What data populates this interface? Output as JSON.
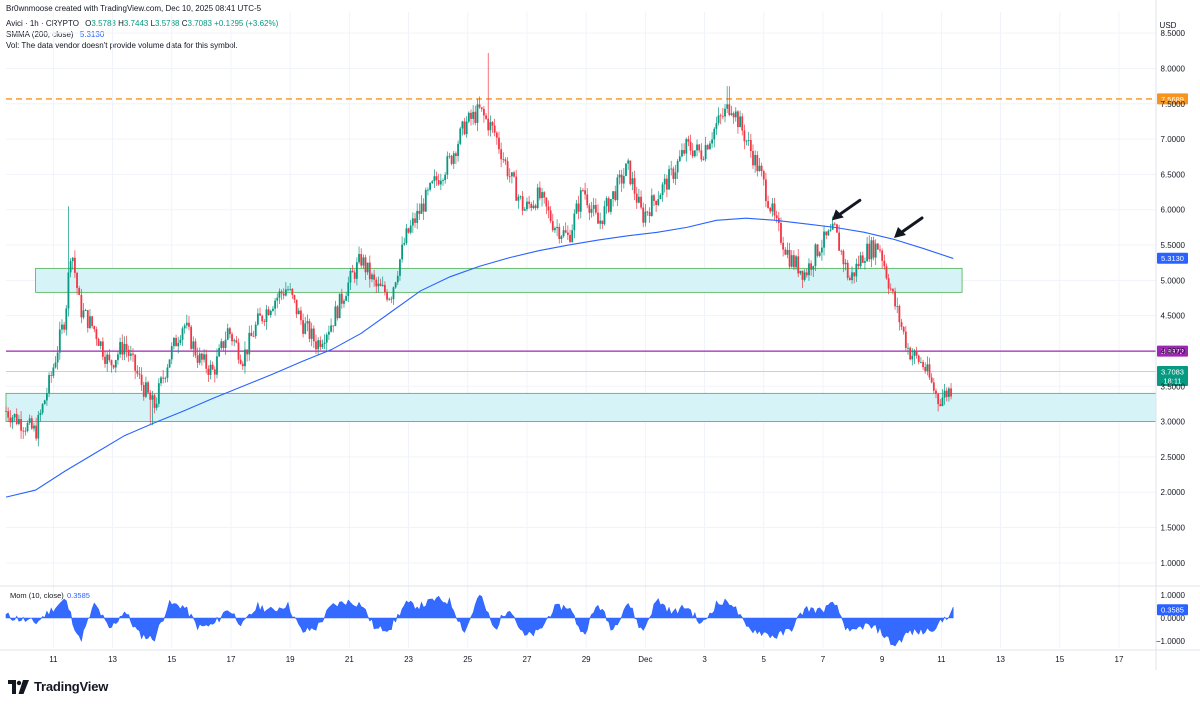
{
  "header": {
    "created_by": "Br0wnmoose created with TradingView.com, Dec 10, 2025 08:41 UTC-5",
    "symbol_line": "Avici · 1h · CRYPTO",
    "ohlc": {
      "o_label": "O",
      "o": "3.5788",
      "h_label": "H",
      "h": "3.7443",
      "l_label": "L",
      "l": "3.5788",
      "c_label": "C",
      "c": "3.7083",
      "change": "+0.1295 (+3.62%)"
    },
    "smma_label": "SMMA (200, close)",
    "smma_value": "5.3130",
    "vol_note": "Vol: The data vendor doesn't provide volume data for this symbol."
  },
  "currency": "USD",
  "brand": "TradingView",
  "colors": {
    "up": "#089981",
    "down": "#f23645",
    "smma": "#2962ff",
    "orange_line": "#f7941d",
    "purple_line": "#9c27b0",
    "zone_fill": "#d6f3f7",
    "zone_border": "#4caf50",
    "momentum": "#2962ff"
  },
  "chart_data": {
    "type": "candlestick",
    "price_axis": {
      "ticks": [
        "8.5000",
        "8.0000",
        "7.5000",
        "7.0000",
        "6.5000",
        "6.0000",
        "5.5000",
        "5.0000",
        "4.5000",
        "4.0000",
        "3.5000",
        "3.0000",
        "2.5000",
        "2.0000",
        "1.5000",
        "1.0000"
      ],
      "range": [
        0.7,
        8.8
      ]
    },
    "time_axis": {
      "ticks": [
        "11",
        "13",
        "15",
        "17",
        "19",
        "21",
        "23",
        "25",
        "27",
        "29",
        "Dec",
        "3",
        "5",
        "7",
        "9",
        "11",
        "13",
        "15",
        "17"
      ]
    },
    "price_path": [
      [
        0,
        3.15
      ],
      [
        1,
        2.85
      ],
      [
        1.5,
        3.6
      ],
      [
        2,
        4.5
      ],
      [
        2.2,
        5.5
      ],
      [
        2.5,
        4.6
      ],
      [
        3,
        4.3
      ],
      [
        3.5,
        3.8
      ],
      [
        4,
        4.1
      ],
      [
        4.5,
        3.6
      ],
      [
        5,
        3.2
      ],
      [
        5.5,
        3.9
      ],
      [
        6,
        4.4
      ],
      [
        6.5,
        3.9
      ],
      [
        7,
        3.7
      ],
      [
        7.5,
        4.3
      ],
      [
        8,
        3.9
      ],
      [
        8.5,
        4.4
      ],
      [
        9,
        4.7
      ],
      [
        9.5,
        4.9
      ],
      [
        10,
        4.4
      ],
      [
        10.5,
        4.1
      ],
      [
        11,
        4.4
      ],
      [
        11.5,
        4.9
      ],
      [
        12,
        5.3
      ],
      [
        12.5,
        4.9
      ],
      [
        13,
        4.8
      ],
      [
        13.5,
        5.6
      ],
      [
        14,
        6.0
      ],
      [
        14.5,
        6.4
      ],
      [
        15,
        6.7
      ],
      [
        15.5,
        7.2
      ],
      [
        16,
        7.4
      ],
      [
        16.5,
        7.1
      ],
      [
        17,
        6.5
      ],
      [
        17.5,
        6.0
      ],
      [
        18,
        6.2
      ],
      [
        18.5,
        5.8
      ],
      [
        19,
        5.6
      ],
      [
        19.5,
        6.3
      ],
      [
        20,
        5.8
      ],
      [
        20.5,
        6.2
      ],
      [
        21,
        6.6
      ],
      [
        21.5,
        5.9
      ],
      [
        22,
        6.2
      ],
      [
        22.5,
        6.5
      ],
      [
        23,
        6.9
      ],
      [
        23.5,
        6.8
      ],
      [
        24,
        7.2
      ],
      [
        24.5,
        7.5
      ],
      [
        25,
        7.0
      ],
      [
        25.5,
        6.5
      ],
      [
        26,
        5.8
      ],
      [
        26.5,
        5.3
      ],
      [
        27,
        5.1
      ],
      [
        27.5,
        5.5
      ],
      [
        28,
        5.7
      ],
      [
        28.5,
        5.0
      ],
      [
        29,
        5.4
      ],
      [
        29.5,
        5.5
      ],
      [
        30,
        4.7
      ],
      [
        30.5,
        4.0
      ],
      [
        31,
        3.8
      ],
      [
        31.5,
        3.3
      ],
      [
        32,
        3.5
      ]
    ],
    "notable_highs": [
      {
        "x": 16.3,
        "price": 8.22
      },
      {
        "x": 24.4,
        "price": 7.75
      },
      {
        "x": 2.1,
        "price": 6.05
      }
    ],
    "notable_lows": [
      {
        "x": 1.1,
        "price": 2.65
      },
      {
        "x": 4.9,
        "price": 2.95
      },
      {
        "x": 31.6,
        "price": 3.25
      }
    ],
    "smma_200": [
      [
        0,
        1.93
      ],
      [
        1,
        2.03
      ],
      [
        2,
        2.3
      ],
      [
        3,
        2.55
      ],
      [
        4,
        2.8
      ],
      [
        5,
        2.98
      ],
      [
        6,
        3.15
      ],
      [
        7,
        3.33
      ],
      [
        8,
        3.5
      ],
      [
        9,
        3.67
      ],
      [
        10,
        3.85
      ],
      [
        11,
        4.02
      ],
      [
        12,
        4.25
      ],
      [
        13,
        4.55
      ],
      [
        14,
        4.85
      ],
      [
        15,
        5.05
      ],
      [
        16,
        5.2
      ],
      [
        17,
        5.32
      ],
      [
        18,
        5.42
      ],
      [
        19,
        5.5
      ],
      [
        20,
        5.57
      ],
      [
        21,
        5.63
      ],
      [
        22,
        5.68
      ],
      [
        23,
        5.75
      ],
      [
        24,
        5.85
      ],
      [
        25,
        5.88
      ],
      [
        26,
        5.85
      ],
      [
        27,
        5.8
      ],
      [
        28,
        5.75
      ],
      [
        29,
        5.68
      ],
      [
        30,
        5.58
      ],
      [
        31,
        5.45
      ],
      [
        32,
        5.31
      ]
    ],
    "horizontal_lines": [
      {
        "name": "orange-dashed",
        "price": 7.5689,
        "label": "7.5689",
        "style": "dashed"
      },
      {
        "name": "purple",
        "price": 3.9972,
        "label": "3.9972",
        "style": "solid"
      },
      {
        "name": "last-price",
        "price": 3.7083,
        "label": "3.7083",
        "countdown": "18:11",
        "style": "solid"
      }
    ],
    "zones": [
      {
        "name": "upper-zone",
        "from_price": 4.83,
        "to_price": 5.17,
        "x_start": 1.0,
        "x_end": 32.3
      },
      {
        "name": "lower-zone",
        "from_price": 3.0,
        "to_price": 3.4,
        "x_start": 0,
        "x_end": 39.5
      }
    ],
    "smma_label": "5.3130",
    "arrows": [
      {
        "tip_x": 27.9,
        "tip_price": 5.85
      },
      {
        "tip_x": 30.0,
        "tip_price": 5.6
      }
    ],
    "momentum": {
      "title": "Mom (10, close)",
      "value": "0.3585",
      "axis_ticks": [
        "1.0000",
        "0.0000",
        "−1.0000"
      ],
      "range": [
        -1.3,
        1.3
      ],
      "path": [
        [
          0,
          0.1
        ],
        [
          1,
          -0.2
        ],
        [
          2,
          0.8
        ],
        [
          2.5,
          -1.0
        ],
        [
          3,
          0.6
        ],
        [
          3.5,
          -0.5
        ],
        [
          4,
          0.3
        ],
        [
          4.5,
          -0.7
        ],
        [
          5,
          -0.9
        ],
        [
          5.5,
          0.6
        ],
        [
          6,
          0.5
        ],
        [
          6.5,
          -0.4
        ],
        [
          7,
          -0.3
        ],
        [
          7.5,
          0.4
        ],
        [
          8,
          -0.3
        ],
        [
          8.5,
          0.5
        ],
        [
          9,
          0.3
        ],
        [
          9.5,
          0.6
        ],
        [
          10,
          -0.6
        ],
        [
          10.5,
          -0.4
        ],
        [
          11,
          0.5
        ],
        [
          11.5,
          0.7
        ],
        [
          12,
          0.6
        ],
        [
          12.5,
          -0.5
        ],
        [
          13,
          -0.4
        ],
        [
          13.5,
          0.6
        ],
        [
          14,
          0.5
        ],
        [
          14.5,
          0.8
        ],
        [
          15,
          0.7
        ],
        [
          15.5,
          -0.6
        ],
        [
          16,
          1.0
        ],
        [
          16.5,
          -0.5
        ],
        [
          17,
          0.5
        ],
        [
          17.5,
          -0.8
        ],
        [
          18,
          -0.6
        ],
        [
          18.5,
          0.4
        ],
        [
          19,
          0.5
        ],
        [
          19.5,
          -0.7
        ],
        [
          20,
          0.6
        ],
        [
          20.5,
          -0.5
        ],
        [
          21,
          0.7
        ],
        [
          21.5,
          -0.6
        ],
        [
          22,
          0.8
        ],
        [
          22.5,
          0.2
        ],
        [
          23,
          0.5
        ],
        [
          23.5,
          -0.3
        ],
        [
          24,
          0.6
        ],
        [
          24.5,
          0.7
        ],
        [
          25,
          -0.4
        ],
        [
          25.5,
          -0.6
        ],
        [
          26,
          -0.8
        ],
        [
          26.5,
          -0.5
        ],
        [
          27,
          0.4
        ],
        [
          27.5,
          0.3
        ],
        [
          28,
          0.6
        ],
        [
          28.5,
          -0.7
        ],
        [
          29,
          -0.3
        ],
        [
          29.5,
          -0.5
        ],
        [
          30,
          -1.2
        ],
        [
          30.5,
          -0.6
        ],
        [
          31,
          -0.6
        ],
        [
          31.5,
          -0.3
        ],
        [
          32,
          0.36
        ]
      ]
    }
  }
}
